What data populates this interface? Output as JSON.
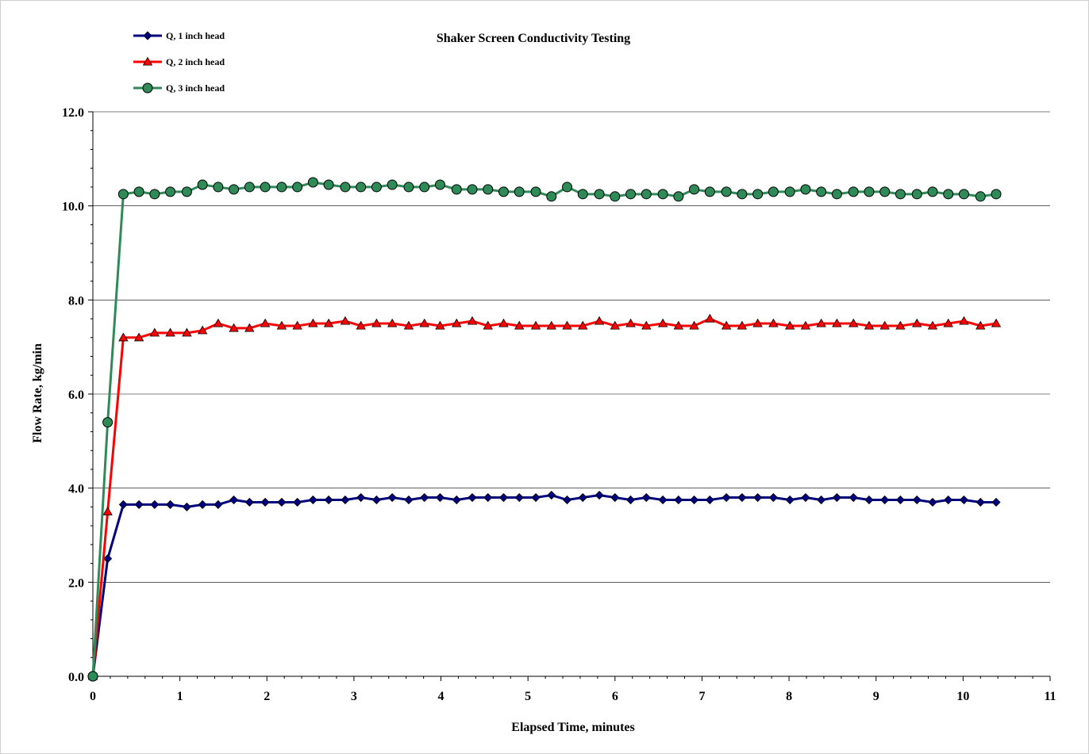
{
  "chart_data": {
    "type": "line",
    "title": "Shaker Screen Conductivity Testing",
    "xlabel": "Elapsed Time, minutes",
    "ylabel": "Flow Rate, kg/min",
    "xlim": [
      0,
      11
    ],
    "ylim": [
      0,
      12
    ],
    "x_ticks": [
      "0",
      "1",
      "2",
      "3",
      "4",
      "5",
      "6",
      "7",
      "8",
      "9",
      "10",
      "11"
    ],
    "y_ticks": [
      "0.0",
      "2.0",
      "4.0",
      "6.0",
      "8.0",
      "10.0",
      "12.0"
    ],
    "grid": "horizontal major gridlines",
    "legend_position": "top-left",
    "x": [
      0,
      0.17,
      0.35,
      0.53,
      0.71,
      0.89,
      1.08,
      1.26,
      1.44,
      1.62,
      1.8,
      1.98,
      2.17,
      2.35,
      2.53,
      2.71,
      2.9,
      3.08,
      3.26,
      3.44,
      3.63,
      3.81,
      3.99,
      4.18,
      4.36,
      4.54,
      4.72,
      4.9,
      5.09,
      5.27,
      5.45,
      5.63,
      5.82,
      6.0,
      6.18,
      6.36,
      6.55,
      6.73,
      6.91,
      7.09,
      7.28,
      7.46,
      7.64,
      7.82,
      8.01,
      8.19,
      8.37,
      8.55,
      8.74,
      8.92,
      9.1,
      9.28,
      9.47,
      9.65,
      9.83,
      10.01,
      10.2,
      10.38
    ],
    "series": [
      {
        "name": "Q, 1 inch head",
        "color": "#000080",
        "marker": "diamond",
        "values": [
          0,
          2.5,
          3.65,
          3.65,
          3.65,
          3.65,
          3.6,
          3.65,
          3.65,
          3.75,
          3.7,
          3.7,
          3.7,
          3.7,
          3.75,
          3.75,
          3.75,
          3.8,
          3.75,
          3.8,
          3.75,
          3.8,
          3.8,
          3.75,
          3.8,
          3.8,
          3.8,
          3.8,
          3.8,
          3.85,
          3.75,
          3.8,
          3.85,
          3.8,
          3.75,
          3.8,
          3.75,
          3.75,
          3.75,
          3.75,
          3.8,
          3.8,
          3.8,
          3.8,
          3.75,
          3.8,
          3.75,
          3.8,
          3.8,
          3.75,
          3.75,
          3.75,
          3.75,
          3.7,
          3.75,
          3.75,
          3.7,
          3.7
        ]
      },
      {
        "name": "Q, 2 inch head",
        "color": "#ff0000",
        "marker": "triangle",
        "values": [
          0,
          3.5,
          7.2,
          7.2,
          7.3,
          7.3,
          7.3,
          7.35,
          7.5,
          7.4,
          7.4,
          7.5,
          7.45,
          7.45,
          7.5,
          7.5,
          7.55,
          7.45,
          7.5,
          7.5,
          7.45,
          7.5,
          7.45,
          7.5,
          7.55,
          7.45,
          7.5,
          7.45,
          7.45,
          7.45,
          7.45,
          7.45,
          7.55,
          7.45,
          7.5,
          7.45,
          7.5,
          7.45,
          7.45,
          7.6,
          7.45,
          7.45,
          7.5,
          7.5,
          7.45,
          7.45,
          7.5,
          7.5,
          7.5,
          7.45,
          7.45,
          7.45,
          7.5,
          7.45,
          7.5,
          7.55,
          7.45,
          7.5
        ]
      },
      {
        "name": "Q, 3 inch head",
        "color": "#2e8b57",
        "marker": "circle",
        "values": [
          0,
          5.4,
          10.25,
          10.3,
          10.25,
          10.3,
          10.3,
          10.45,
          10.4,
          10.35,
          10.4,
          10.4,
          10.4,
          10.4,
          10.5,
          10.45,
          10.4,
          10.4,
          10.4,
          10.45,
          10.4,
          10.4,
          10.45,
          10.35,
          10.35,
          10.35,
          10.3,
          10.3,
          10.3,
          10.2,
          10.4,
          10.25,
          10.25,
          10.2,
          10.25,
          10.25,
          10.25,
          10.2,
          10.35,
          10.3,
          10.3,
          10.25,
          10.25,
          10.3,
          10.3,
          10.35,
          10.3,
          10.25,
          10.3,
          10.3,
          10.3,
          10.25,
          10.25,
          10.3,
          10.25,
          10.25,
          10.2,
          10.25
        ]
      }
    ]
  }
}
